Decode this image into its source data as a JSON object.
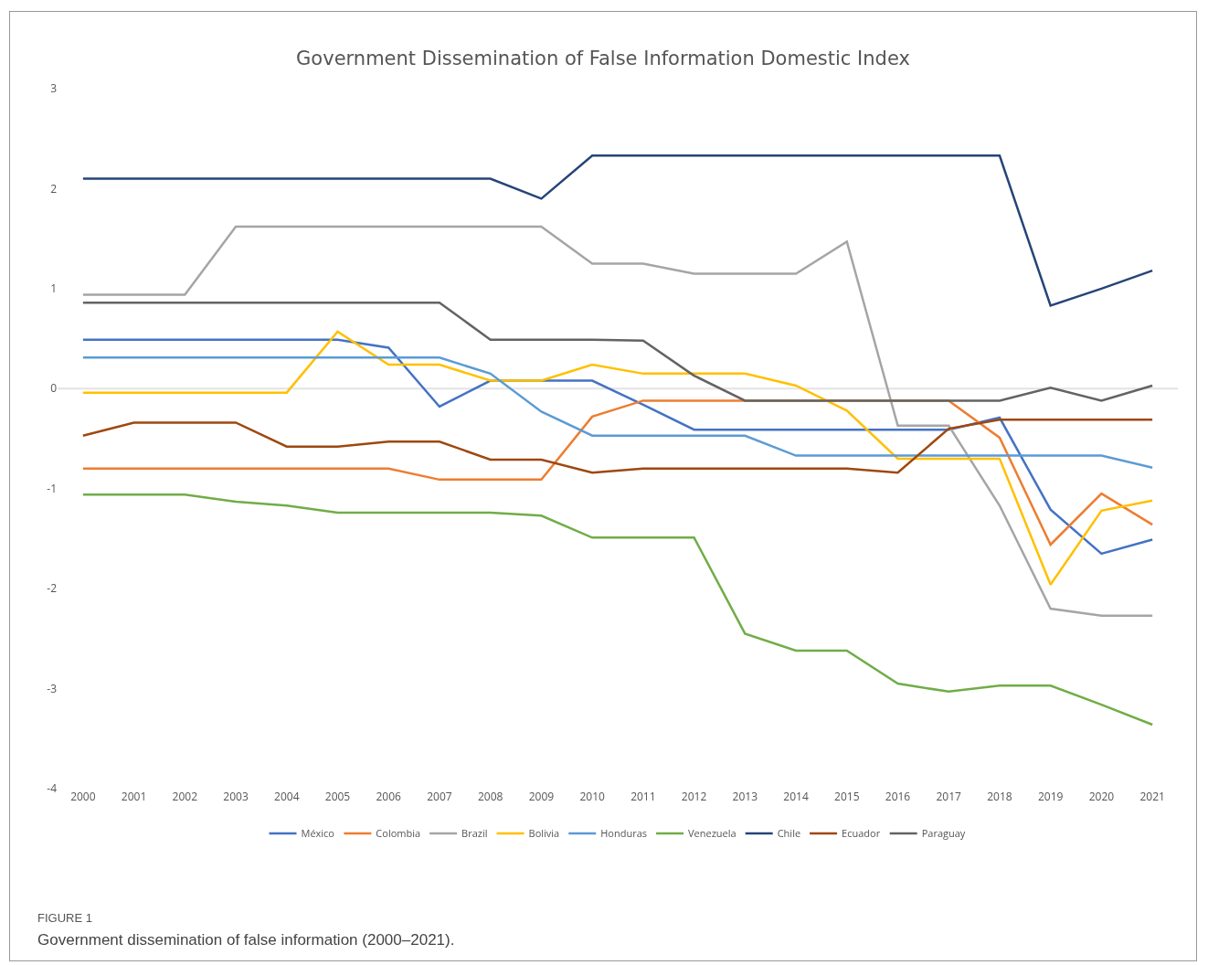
{
  "chart_data": {
    "type": "line",
    "title": "Government Dissemination of False Information Domestic Index",
    "categories": [
      "2000",
      "2001",
      "2002",
      "2003",
      "2004",
      "2005",
      "2006",
      "2007",
      "2008",
      "2009",
      "2010",
      "2011",
      "2012",
      "2013",
      "2014",
      "2015",
      "2016",
      "2017",
      "2018",
      "2019",
      "2020",
      "2021"
    ],
    "ylim": [
      -4,
      3
    ],
    "yticks": [
      -4,
      -3,
      -2,
      -1,
      0,
      1,
      2,
      3
    ],
    "grid": false,
    "ref_lines": [
      {
        "axis": "y",
        "value": 0,
        "color": "#e3e3e3"
      }
    ],
    "legend": "bottom",
    "marker": "none",
    "line_style": "solid",
    "series": [
      {
        "name": "México",
        "color": "#4472c4",
        "values": [
          0.49,
          0.49,
          0.49,
          0.49,
          0.49,
          0.49,
          0.41,
          -0.18,
          0.08,
          0.08,
          0.08,
          -0.16,
          -0.41,
          -0.41,
          -0.41,
          -0.41,
          -0.41,
          -0.41,
          -0.29,
          -1.21,
          -1.65,
          -1.51
        ]
      },
      {
        "name": "Colombia",
        "color": "#ed7d31",
        "values": [
          -0.8,
          -0.8,
          -0.8,
          -0.8,
          -0.8,
          -0.8,
          -0.8,
          -0.91,
          -0.91,
          -0.91,
          -0.28,
          -0.12,
          -0.12,
          -0.12,
          -0.12,
          -0.12,
          -0.12,
          -0.12,
          -0.49,
          -1.56,
          -1.05,
          -1.36
        ]
      },
      {
        "name": "Brazil",
        "color": "#a5a5a5",
        "values": [
          0.94,
          0.94,
          0.94,
          1.62,
          1.62,
          1.62,
          1.62,
          1.62,
          1.62,
          1.62,
          1.25,
          1.25,
          1.15,
          1.15,
          1.15,
          1.47,
          -0.37,
          -0.37,
          -1.17,
          -2.2,
          -2.27,
          -2.27
        ]
      },
      {
        "name": "Bolivia",
        "color": "#ffc000",
        "values": [
          -0.04,
          -0.04,
          -0.04,
          -0.04,
          -0.04,
          0.57,
          0.24,
          0.24,
          0.08,
          0.08,
          0.24,
          0.15,
          0.15,
          0.15,
          0.03,
          -0.22,
          -0.7,
          -0.7,
          -0.7,
          -1.96,
          -1.22,
          -1.12
        ]
      },
      {
        "name": "Honduras",
        "color": "#5b9bd5",
        "values": [
          0.31,
          0.31,
          0.31,
          0.31,
          0.31,
          0.31,
          0.31,
          0.31,
          0.15,
          -0.23,
          -0.47,
          -0.47,
          -0.47,
          -0.47,
          -0.67,
          -0.67,
          -0.67,
          -0.67,
          -0.67,
          -0.67,
          -0.67,
          -0.79
        ]
      },
      {
        "name": "Venezuela",
        "color": "#70ad47",
        "values": [
          -1.06,
          -1.06,
          -1.06,
          -1.13,
          -1.17,
          -1.24,
          -1.24,
          -1.24,
          -1.24,
          -1.27,
          -1.49,
          -1.49,
          -1.49,
          -2.45,
          -2.62,
          -2.62,
          -2.95,
          -3.03,
          -2.97,
          -2.97,
          -3.16,
          -3.36
        ]
      },
      {
        "name": "Chile",
        "color": "#264478",
        "values": [
          2.1,
          2.1,
          2.1,
          2.1,
          2.1,
          2.1,
          2.1,
          2.1,
          2.1,
          1.9,
          2.33,
          2.33,
          2.33,
          2.33,
          2.33,
          2.33,
          2.33,
          2.33,
          2.33,
          0.83,
          1.0,
          1.18
        ]
      },
      {
        "name": "Ecuador",
        "color": "#9e480e",
        "values": [
          -0.47,
          -0.34,
          -0.34,
          -0.34,
          -0.58,
          -0.58,
          -0.53,
          -0.53,
          -0.71,
          -0.71,
          -0.84,
          -0.8,
          -0.8,
          -0.8,
          -0.8,
          -0.8,
          -0.84,
          -0.4,
          -0.31,
          -0.31,
          -0.31,
          -0.31
        ]
      },
      {
        "name": "Paraguay",
        "color": "#636363",
        "values": [
          0.86,
          0.86,
          0.86,
          0.86,
          0.86,
          0.86,
          0.86,
          0.86,
          0.49,
          0.49,
          0.49,
          0.48,
          0.13,
          -0.12,
          -0.12,
          -0.12,
          -0.12,
          -0.12,
          -0.12,
          0.01,
          -0.12,
          0.03
        ]
      }
    ],
    "annotations": [
      "FIGURE 1",
      "Government dissemination of false information (2000–2021)."
    ]
  }
}
